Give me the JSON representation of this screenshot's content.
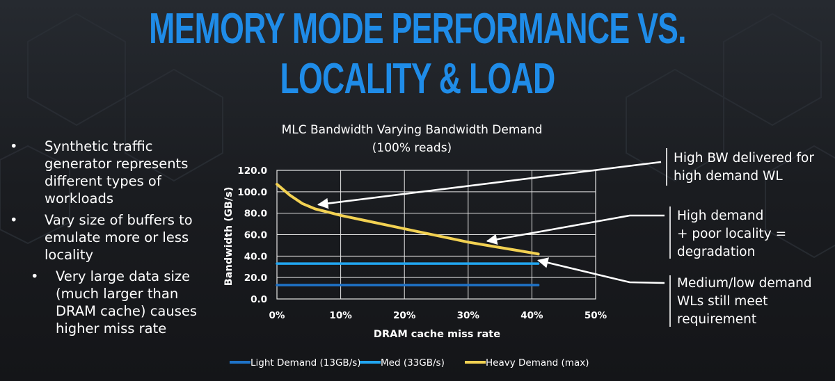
{
  "slide": {
    "title": "MEMORY MODE PERFORMANCE VS. LOCALITY & LOAD",
    "bullets": [
      {
        "level": 1,
        "text": "Synthetic traffic generator represents different types of workloads",
        "lines": [
          "Synthetic traffic",
          "generator represents",
          "different types of",
          "workloads"
        ]
      },
      {
        "level": 1,
        "text": "Vary size of buffers to emulate more or less locality",
        "lines": [
          "Vary size of buffers to",
          "emulate more or less",
          "locality"
        ]
      },
      {
        "level": 2,
        "text": "Very large data size (much larger than DRAM cache) causes higher miss rate",
        "lines": [
          "Very large data size",
          "(much larger than",
          "DRAM cache) causes",
          "higher miss rate"
        ]
      }
    ],
    "callouts": [
      {
        "lines": [
          "High BW delivered for",
          "high demand WL"
        ]
      },
      {
        "lines": [
          "High demand",
          "+ poor locality =",
          "degradation"
        ]
      },
      {
        "lines": [
          "Medium/low demand",
          "WLs still meet",
          "requirement"
        ]
      }
    ]
  },
  "chart_data": {
    "type": "line",
    "title": "MLC Bandwidth Varying Bandwidth Demand",
    "subtitle": "(100% reads)",
    "xlabel": "DRAM cache miss rate",
    "ylabel": "Bandwidth (GB/s)",
    "xlim": [
      0,
      50
    ],
    "ylim": [
      0,
      120
    ],
    "x_ticks": [
      0,
      10,
      20,
      30,
      40,
      50
    ],
    "x_tick_labels": [
      "0%",
      "10%",
      "20%",
      "30%",
      "40%",
      "50%"
    ],
    "y_ticks": [
      0,
      20,
      40,
      60,
      80,
      100,
      120
    ],
    "y_tick_labels": [
      "0.0",
      "20.0",
      "40.0",
      "60.0",
      "80.0",
      "100.0",
      "120.0"
    ],
    "grid": true,
    "legend_position": "bottom",
    "series": [
      {
        "name": "Light Demand (13GB/s)",
        "color": "#1e73c8",
        "x": [
          0,
          41
        ],
        "y": [
          13,
          13
        ]
      },
      {
        "name": "Med (33GB/s)",
        "color": "#22a6f0",
        "x": [
          0,
          41
        ],
        "y": [
          33,
          33
        ]
      },
      {
        "name": "Heavy Demand (max)",
        "color": "#f2d152",
        "x": [
          0,
          2,
          4,
          6,
          8,
          10,
          14,
          18,
          22,
          26,
          30,
          34,
          38,
          41
        ],
        "y": [
          107,
          97,
          89,
          84,
          81,
          78,
          73,
          68,
          63,
          58,
          53,
          49,
          45,
          42
        ]
      }
    ],
    "arrow_targets": [
      {
        "x": 6.5,
        "y": 88
      },
      {
        "x": 33,
        "y": 54
      },
      {
        "x": 41,
        "y": 36
      }
    ]
  }
}
